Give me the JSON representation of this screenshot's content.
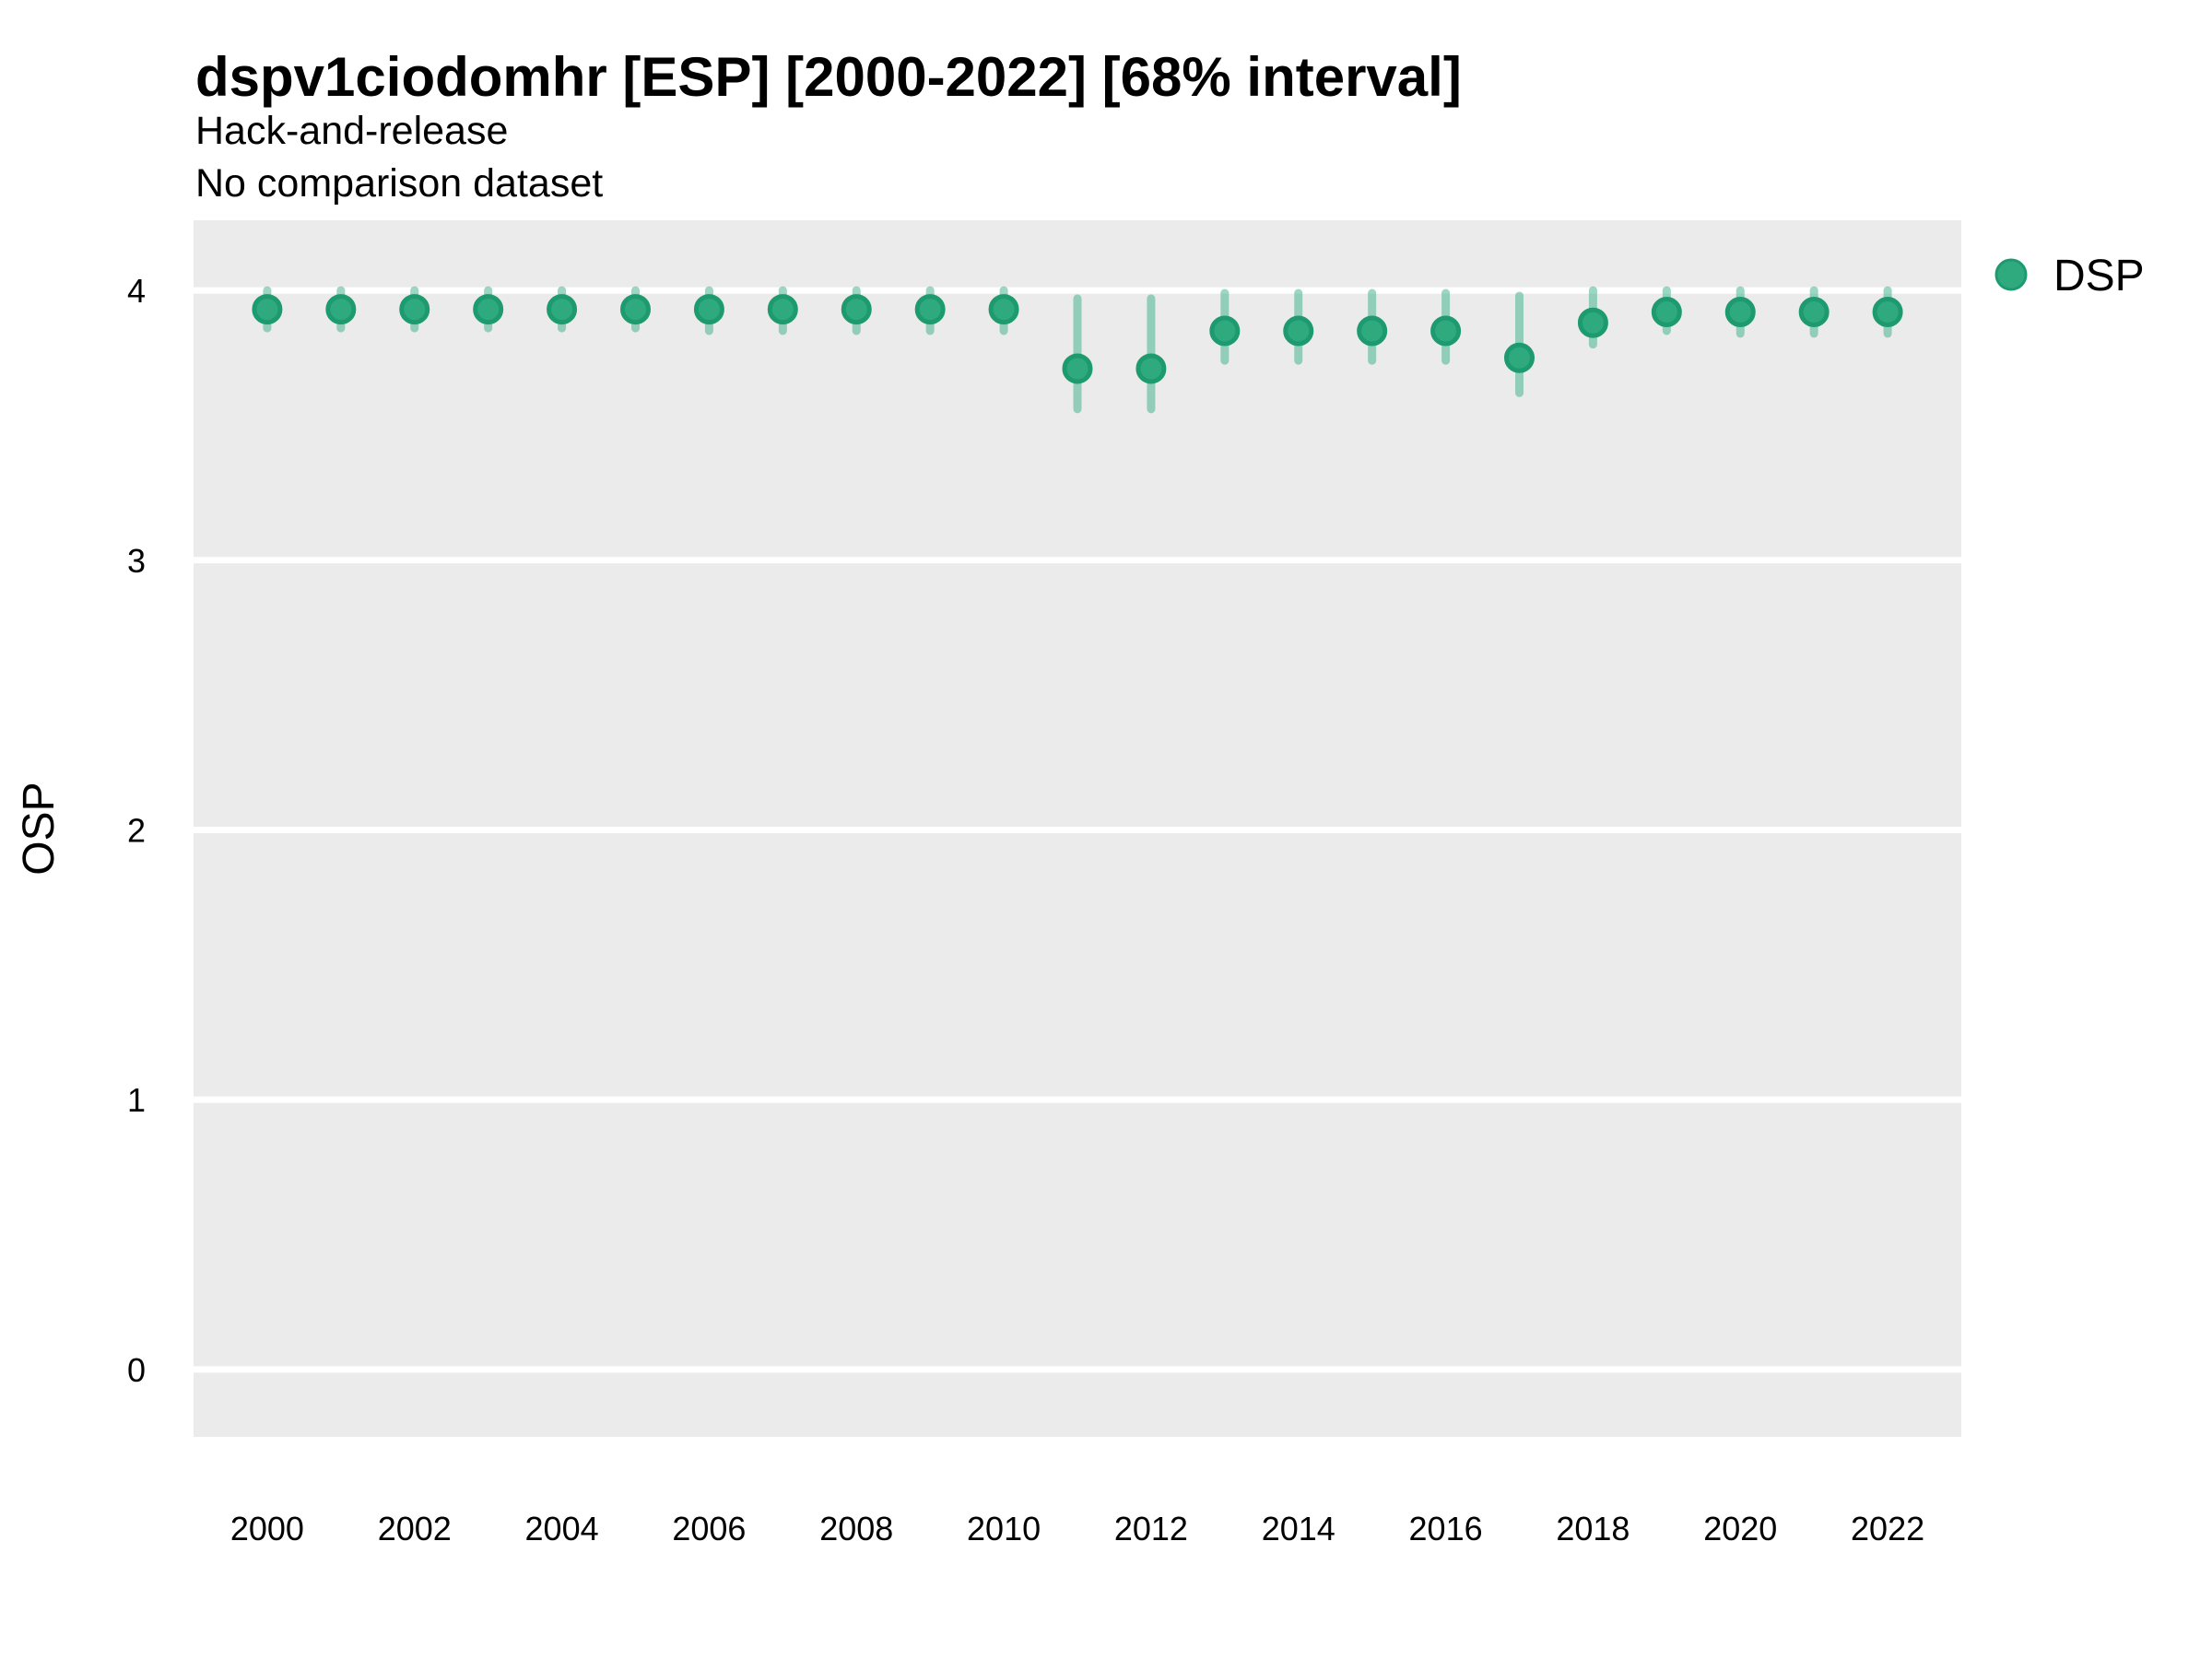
{
  "title": "dspv1ciodomhr [ESP] [2000-2022] [68% interval]",
  "subtitle_line1": "Hack-and-release",
  "subtitle_line2": "No comparison dataset",
  "y_axis_label": "OSP",
  "legend": {
    "label": "DSP"
  },
  "colors": {
    "point_fill": "#2faa7f",
    "point_stroke": "#1d9a70",
    "interval": "rgba(46,171,129,0.48)",
    "panel_bg": "#ebebeb",
    "gridline": "#ffffff",
    "text": "#000000"
  },
  "chart_data": {
    "type": "scatter",
    "variant": "point-interval",
    "title": "dspv1ciodomhr [ESP] [2000-2022] [68% interval]",
    "subtitle": [
      "Hack-and-release",
      "No comparison dataset"
    ],
    "xlabel": "",
    "ylabel": "OSP",
    "interval_level": "68%",
    "xlim": [
      1999,
      2023
    ],
    "ylim": [
      -0.25,
      4.26
    ],
    "xticks": [
      2000,
      2002,
      2004,
      2006,
      2008,
      2010,
      2012,
      2014,
      2016,
      2018,
      2020,
      2022
    ],
    "yticks": [
      0,
      1,
      2,
      3,
      4
    ],
    "grid": "major-horizontal-only",
    "legend_position": "right",
    "series": [
      {
        "name": "DSP",
        "x": [
          2000,
          2001,
          2002,
          2003,
          2004,
          2005,
          2006,
          2007,
          2008,
          2009,
          2010,
          2011,
          2012,
          2013,
          2014,
          2015,
          2016,
          2017,
          2018,
          2019,
          2020,
          2021,
          2022
        ],
        "y": [
          3.93,
          3.93,
          3.93,
          3.93,
          3.93,
          3.93,
          3.93,
          3.93,
          3.93,
          3.93,
          3.93,
          3.71,
          3.71,
          3.85,
          3.85,
          3.85,
          3.85,
          3.75,
          3.88,
          3.92,
          3.92,
          3.92,
          3.92
        ],
        "y_lower": [
          3.86,
          3.86,
          3.86,
          3.86,
          3.86,
          3.86,
          3.85,
          3.85,
          3.85,
          3.85,
          3.85,
          3.56,
          3.56,
          3.74,
          3.74,
          3.74,
          3.74,
          3.62,
          3.8,
          3.85,
          3.84,
          3.84,
          3.84
        ],
        "y_upper": [
          4.0,
          4.0,
          4.0,
          4.0,
          4.0,
          4.0,
          4.0,
          4.0,
          4.0,
          4.0,
          4.0,
          3.97,
          3.97,
          3.99,
          3.99,
          3.99,
          3.99,
          3.98,
          4.0,
          4.0,
          4.0,
          4.0,
          4.0
        ]
      }
    ]
  }
}
